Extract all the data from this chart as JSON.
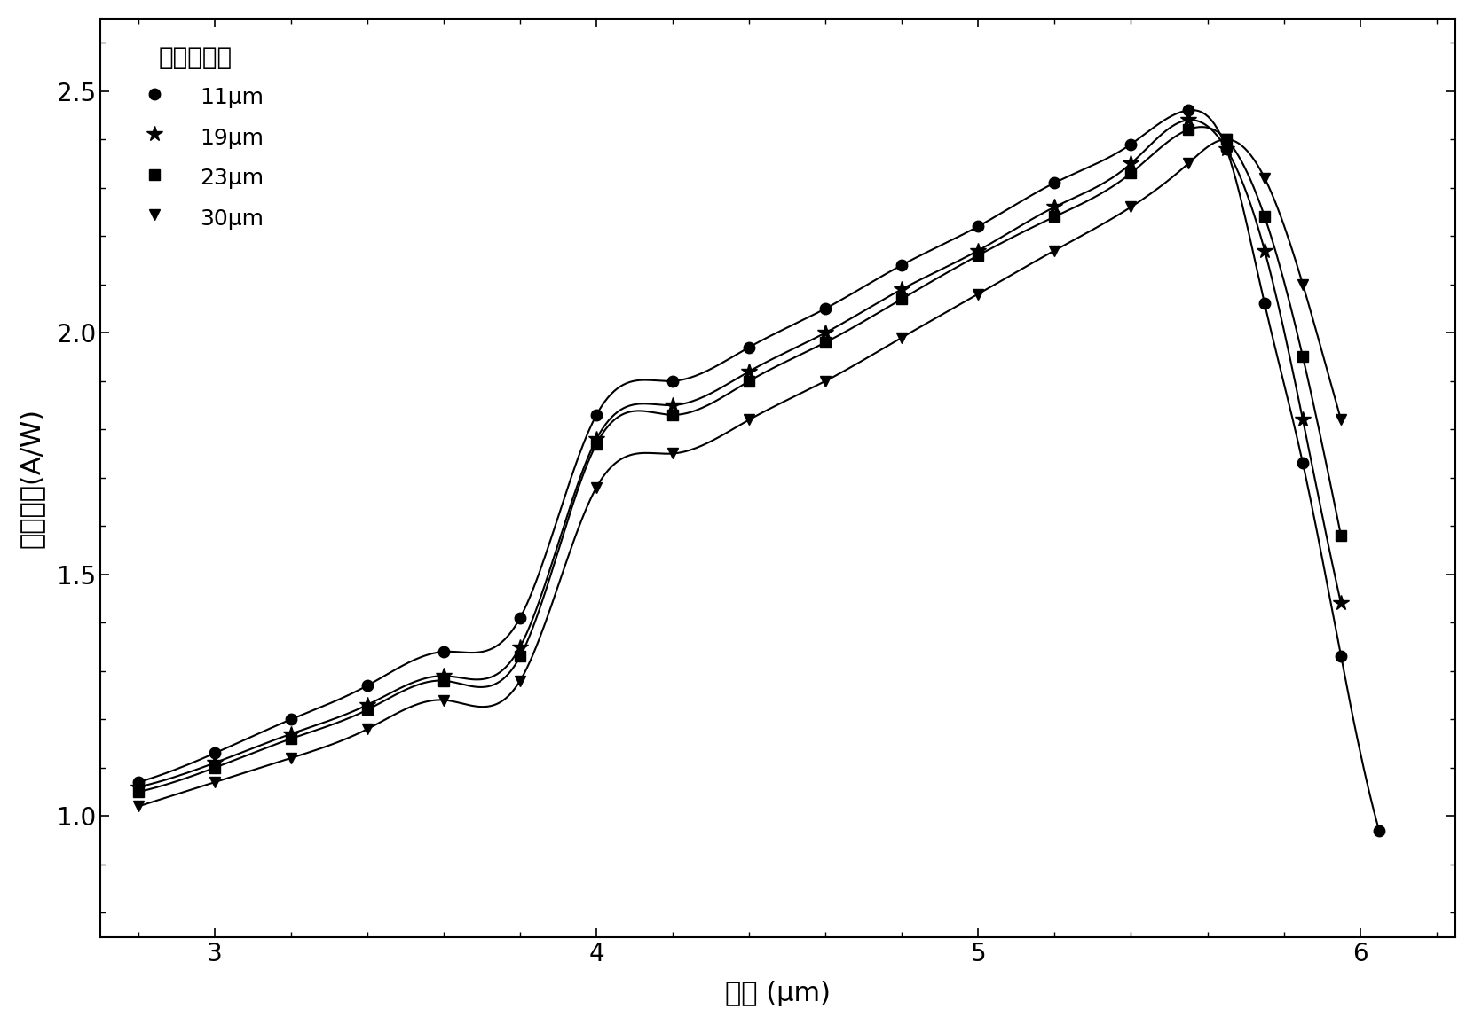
{
  "title": "",
  "xlabel": "波长 (μm)",
  "ylabel": "光响应率（A/W）",
  "ylabel_display": "光响应率(A/W)",
  "xlim": [
    2.7,
    6.25
  ],
  "ylim": [
    0.75,
    2.65
  ],
  "xticks": [
    3,
    4,
    5,
    6
  ],
  "yticks": [
    1.0,
    1.5,
    2.0,
    2.5
  ],
  "legend_title": "吸收层厚度",
  "series": [
    {
      "label": "11μm",
      "marker": "o",
      "x": [
        2.8,
        3.0,
        3.2,
        3.4,
        3.6,
        3.8,
        4.0,
        4.2,
        4.4,
        4.6,
        4.8,
        5.0,
        5.2,
        5.4,
        5.55,
        5.65,
        5.75,
        5.85,
        5.95,
        6.05
      ],
      "y": [
        1.07,
        1.13,
        1.2,
        1.27,
        1.34,
        1.41,
        1.83,
        1.9,
        1.97,
        2.05,
        2.14,
        2.22,
        2.31,
        2.39,
        2.46,
        2.38,
        2.06,
        1.73,
        1.33,
        0.97
      ]
    },
    {
      "label": "19μm",
      "marker": "*",
      "x": [
        2.8,
        3.0,
        3.2,
        3.4,
        3.6,
        3.8,
        4.0,
        4.2,
        4.4,
        4.6,
        4.8,
        5.0,
        5.2,
        5.4,
        5.55,
        5.65,
        5.75,
        5.85,
        5.95
      ],
      "y": [
        1.06,
        1.11,
        1.17,
        1.23,
        1.29,
        1.35,
        1.78,
        1.85,
        1.92,
        2.0,
        2.09,
        2.17,
        2.26,
        2.35,
        2.44,
        2.38,
        2.17,
        1.82,
        1.44
      ]
    },
    {
      "label": "23μm",
      "marker": "s",
      "x": [
        2.8,
        3.0,
        3.2,
        3.4,
        3.6,
        3.8,
        4.0,
        4.2,
        4.4,
        4.6,
        4.8,
        5.0,
        5.2,
        5.4,
        5.55,
        5.65,
        5.75,
        5.85,
        5.95
      ],
      "y": [
        1.05,
        1.1,
        1.16,
        1.22,
        1.28,
        1.33,
        1.77,
        1.83,
        1.9,
        1.98,
        2.07,
        2.16,
        2.24,
        2.33,
        2.42,
        2.4,
        2.24,
        1.95,
        1.58
      ]
    },
    {
      "label": "30μm",
      "marker": "v",
      "x": [
        2.8,
        3.0,
        3.2,
        3.4,
        3.6,
        3.8,
        4.0,
        4.2,
        4.4,
        4.6,
        4.8,
        5.0,
        5.2,
        5.4,
        5.55,
        5.65,
        5.75,
        5.85,
        5.95
      ],
      "y": [
        1.02,
        1.07,
        1.12,
        1.18,
        1.24,
        1.28,
        1.68,
        1.75,
        1.82,
        1.9,
        1.99,
        2.08,
        2.17,
        2.26,
        2.35,
        2.4,
        2.32,
        2.1,
        1.82
      ]
    }
  ],
  "background_color": "#ffffff",
  "line_color": "#000000",
  "markersize_default": 8,
  "markersizes": {
    "o": 9,
    "*": 13,
    "s": 8,
    "v": 9
  },
  "linewidth": 1.5,
  "figsize": [
    16.61,
    11.56
  ],
  "dpi": 100,
  "tick_labelsize": 20,
  "label_fontsize": 22,
  "legend_title_fontsize": 20,
  "legend_fontsize": 18
}
